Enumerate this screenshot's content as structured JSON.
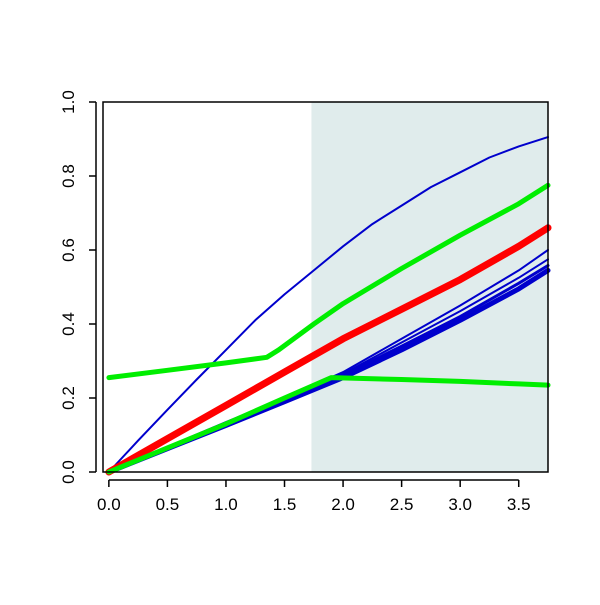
{
  "chart_data": {
    "type": "line",
    "title": "",
    "xlabel": "",
    "ylabel": "",
    "xlim": [
      -0.05,
      3.75
    ],
    "ylim": [
      0.0,
      1.0
    ],
    "x_ticks": [
      "0.0",
      "0.5",
      "1.0",
      "1.5",
      "2.0",
      "2.5",
      "3.0",
      "3.5"
    ],
    "x_tick_values": [
      0.0,
      0.5,
      1.0,
      1.5,
      2.0,
      2.5,
      3.0,
      3.5
    ],
    "y_ticks": [
      "0.0",
      "0.2",
      "0.4",
      "0.6",
      "0.8",
      "1.0"
    ],
    "y_tick_values": [
      0.0,
      0.2,
      0.4,
      0.6,
      0.8,
      1.0
    ],
    "shaded_region": {
      "x_from": 1.73,
      "x_to": 3.75,
      "color": "#e0ecec"
    },
    "grid": false,
    "legend": "none",
    "series": [
      {
        "color": "#0000cc",
        "style": "thin",
        "x": [
          0.0,
          0.25,
          0.5,
          0.75,
          1.0,
          1.25,
          1.5,
          1.75,
          2.0,
          2.25,
          2.5,
          2.75,
          3.0,
          3.25,
          3.5,
          3.75
        ],
        "y": [
          0.0,
          0.085,
          0.168,
          0.25,
          0.33,
          0.41,
          0.48,
          0.545,
          0.61,
          0.67,
          0.72,
          0.77,
          0.81,
          0.85,
          0.88,
          0.905
        ]
      },
      {
        "color": "#0000cc",
        "style": "thin",
        "x": [
          0.0,
          0.5,
          1.0,
          1.5,
          2.0,
          2.5,
          3.0,
          3.5,
          3.75
        ],
        "y": [
          0.0,
          0.068,
          0.135,
          0.2,
          0.27,
          0.36,
          0.45,
          0.545,
          0.6
        ]
      },
      {
        "color": "#0000cc",
        "style": "thin",
        "x": [
          0.0,
          0.5,
          1.0,
          1.5,
          2.0,
          2.5,
          3.0,
          3.5,
          3.75
        ],
        "y": [
          0.0,
          0.066,
          0.132,
          0.198,
          0.265,
          0.35,
          0.435,
          0.525,
          0.575
        ]
      },
      {
        "color": "#0000cc",
        "style": "medium",
        "x": [
          0.0,
          0.5,
          1.0,
          1.5,
          2.0,
          2.5,
          3.0,
          3.5,
          3.75
        ],
        "y": [
          0.0,
          0.065,
          0.13,
          0.196,
          0.262,
          0.34,
          0.42,
          0.51,
          0.558
        ]
      },
      {
        "color": "#0000cc",
        "style": "thick",
        "x": [
          0.0,
          0.5,
          1.0,
          1.5,
          2.0,
          2.5,
          3.0,
          3.5,
          3.75
        ],
        "y": [
          0.0,
          0.063,
          0.126,
          0.19,
          0.255,
          0.33,
          0.41,
          0.495,
          0.545
        ]
      },
      {
        "color": "#ff0000",
        "style": "thickest",
        "x": [
          0.0,
          0.5,
          1.0,
          1.5,
          2.0,
          2.5,
          3.0,
          3.5,
          3.75
        ],
        "y": [
          0.0,
          0.09,
          0.18,
          0.27,
          0.36,
          0.44,
          0.52,
          0.61,
          0.66
        ]
      },
      {
        "color": "#00ee00",
        "style": "thick",
        "x": [
          0.0,
          0.5,
          1.0,
          1.35,
          1.45,
          1.75,
          2.0,
          2.5,
          3.0,
          3.5,
          3.75
        ],
        "y": [
          0.255,
          0.275,
          0.295,
          0.31,
          0.33,
          0.4,
          0.455,
          0.55,
          0.64,
          0.725,
          0.775
        ]
      },
      {
        "color": "#00ee00",
        "style": "thick",
        "x": [
          0.0,
          0.5,
          1.0,
          1.5,
          1.9,
          2.5,
          3.0,
          3.5,
          3.75
        ],
        "y": [
          0.0,
          0.065,
          0.13,
          0.2,
          0.255,
          0.25,
          0.245,
          0.238,
          0.235
        ]
      }
    ]
  }
}
